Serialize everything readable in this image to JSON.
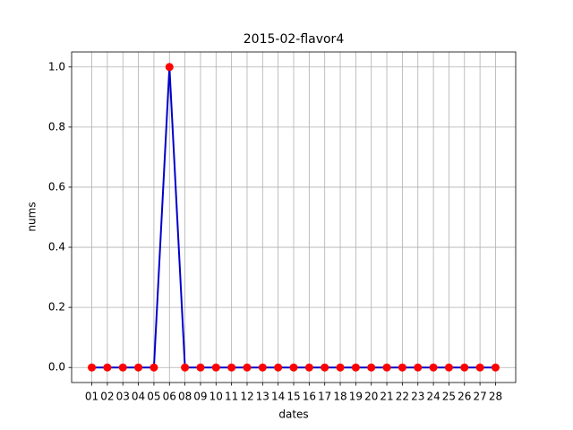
{
  "chart_data": {
    "type": "line",
    "title": "2015-02-flavor4",
    "xlabel": "dates",
    "ylabel": "nums",
    "categories": [
      "01",
      "02",
      "03",
      "04",
      "05",
      "06",
      "08",
      "09",
      "10",
      "11",
      "12",
      "13",
      "14",
      "15",
      "16",
      "17",
      "18",
      "19",
      "20",
      "21",
      "22",
      "23",
      "24",
      "25",
      "26",
      "27",
      "28"
    ],
    "series": [
      {
        "line_color": "#0000cc",
        "marker_color": "#ff0000",
        "values": [
          0,
          0,
          0,
          0,
          0,
          1,
          0,
          0,
          0,
          0,
          0,
          0,
          0,
          0,
          0,
          0,
          0,
          0,
          0,
          0,
          0,
          0,
          0,
          0,
          0,
          0,
          0
        ]
      }
    ],
    "ylim": [
      -0.05,
      1.05
    ],
    "yticks": [
      {
        "value": 0,
        "label": "0.0"
      },
      {
        "value": 0.2,
        "label": "0.2"
      },
      {
        "value": 0.4,
        "label": "0.4"
      },
      {
        "value": 0.6,
        "label": "0.6"
      },
      {
        "value": 0.8,
        "label": "0.8"
      },
      {
        "value": 1,
        "label": "1.0"
      }
    ],
    "grid": true
  }
}
